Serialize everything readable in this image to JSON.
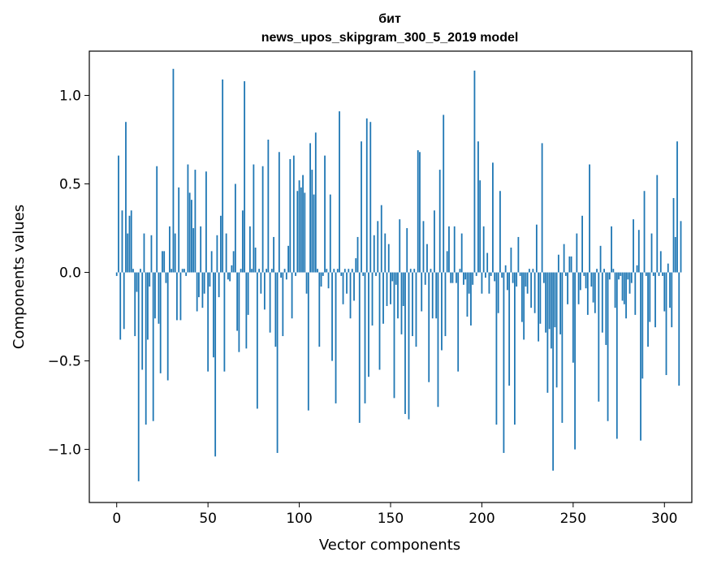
{
  "chart_data": {
    "type": "bar",
    "title_line1": "бит",
    "title_line2": "news_upos_skipgram_300_5_2019 model",
    "xlabel": "Vector components",
    "ylabel": "Components values",
    "xlim": [
      -15,
      315
    ],
    "ylim": [
      -1.3,
      1.25
    ],
    "xticks": [
      0,
      50,
      100,
      150,
      200,
      250,
      300
    ],
    "xtick_labels": [
      "0",
      "50",
      "100",
      "150",
      "200",
      "250",
      "300"
    ],
    "yticks": [
      -1.0,
      -0.5,
      0.0,
      0.5,
      1.0
    ],
    "ytick_labels": [
      "−1.0",
      "−0.5",
      "0.0",
      "0.5",
      "1.0"
    ],
    "bar_color": "#1f77b4",
    "values": [
      -0.02,
      0.66,
      -0.38,
      0.35,
      -0.32,
      0.85,
      0.22,
      0.32,
      0.35,
      0.02,
      -0.36,
      -0.11,
      -1.18,
      0.02,
      -0.55,
      0.22,
      -0.86,
      -0.38,
      -0.08,
      0.21,
      -0.84,
      -0.26,
      0.6,
      -0.29,
      -0.57,
      0.12,
      0.12,
      -0.06,
      -0.61,
      0.26,
      0.02,
      1.15,
      0.22,
      -0.27,
      0.48,
      -0.27,
      0.02,
      0.02,
      -0.02,
      0.61,
      0.45,
      0.41,
      0.25,
      0.58,
      -0.22,
      -0.14,
      0.26,
      -0.2,
      -0.12,
      0.57,
      -0.56,
      -0.08,
      0.12,
      -0.48,
      -1.04,
      0.21,
      -0.14,
      0.32,
      1.09,
      -0.56,
      0.22,
      -0.04,
      -0.05,
      0.04,
      0.12,
      0.5,
      -0.33,
      -0.45,
      0.02,
      0.35,
      1.08,
      -0.43,
      -0.24,
      0.26,
      0.02,
      0.61,
      0.14,
      -0.77,
      0.02,
      -0.12,
      0.6,
      -0.21,
      0.02,
      0.75,
      -0.34,
      0.02,
      0.2,
      -0.42,
      -1.02,
      0.68,
      -0.03,
      -0.36,
      0.02,
      -0.04,
      0.15,
      0.64,
      -0.26,
      0.66,
      -0.02,
      0.46,
      0.52,
      0.48,
      0.55,
      0.45,
      -0.12,
      -0.78,
      0.73,
      0.58,
      0.44,
      0.79,
      0.02,
      -0.42,
      -0.08,
      -0.02,
      0.66,
      0.02,
      -0.09,
      0.44,
      -0.5,
      0.02,
      -0.74,
      0.02,
      0.91,
      -0.02,
      -0.18,
      0.02,
      -0.12,
      0.02,
      -0.26,
      0.02,
      -0.16,
      0.08,
      0.2,
      -0.85,
      0.74,
      -0.02,
      -0.74,
      0.87,
      -0.59,
      0.85,
      -0.3,
      0.21,
      -0.02,
      0.29,
      -0.55,
      0.38,
      -0.29,
      0.22,
      -0.19,
      0.16,
      -0.18,
      -0.05,
      -0.71,
      -0.07,
      -0.26,
      0.3,
      -0.35,
      -0.19,
      -0.8,
      0.25,
      -0.83,
      0.02,
      -0.36,
      0.02,
      -0.42,
      0.69,
      0.68,
      -0.22,
      0.29,
      -0.07,
      0.16,
      -0.62,
      0.02,
      -0.26,
      0.35,
      -0.26,
      -0.76,
      0.58,
      -0.44,
      0.89,
      -0.36,
      0.12,
      0.26,
      -0.06,
      -0.06,
      0.26,
      -0.06,
      -0.56,
      0.02,
      0.22,
      -0.07,
      -0.04,
      -0.25,
      -0.12,
      -0.3,
      -0.07,
      1.14,
      -0.02,
      0.74,
      0.52,
      -0.12,
      0.26,
      -0.03,
      0.11,
      -0.12,
      -0.02,
      0.62,
      -0.05,
      -0.86,
      -0.23,
      0.46,
      -0.03,
      -1.02,
      0.04,
      -0.1,
      -0.64,
      0.14,
      -0.06,
      -0.86,
      -0.08,
      0.2,
      -0.02,
      -0.28,
      -0.38,
      -0.08,
      -0.12,
      0.02,
      -0.2,
      0.02,
      -0.23,
      0.27,
      -0.39,
      -0.29,
      0.73,
      -0.06,
      -0.34,
      -0.68,
      -0.32,
      -0.43,
      -1.12,
      -0.31,
      -0.65,
      0.1,
      -0.35,
      -0.85,
      0.16,
      -0.02,
      -0.18,
      0.09,
      0.09,
      -0.51,
      -1.0,
      0.22,
      -0.18,
      -0.1,
      0.32,
      -0.02,
      -0.09,
      -0.24,
      0.61,
      -0.08,
      -0.17,
      -0.23,
      0.02,
      -0.73,
      0.15,
      -0.34,
      0.02,
      -0.41,
      -0.84,
      -0.04,
      0.26,
      0.02,
      -0.2,
      -0.94,
      -0.04,
      -0.02,
      -0.16,
      -0.18,
      -0.26,
      -0.04,
      -0.12,
      -0.06,
      0.3,
      -0.24,
      0.04,
      0.24,
      -0.95,
      -0.6,
      0.46,
      -0.02,
      -0.42,
      -0.28,
      0.22,
      -0.02,
      -0.31,
      0.55,
      -0.02,
      0.12,
      -0.02,
      -0.22,
      -0.58,
      0.05,
      -0.2,
      -0.31,
      0.42,
      0.2,
      0.74,
      -0.64,
      0.29
    ]
  }
}
